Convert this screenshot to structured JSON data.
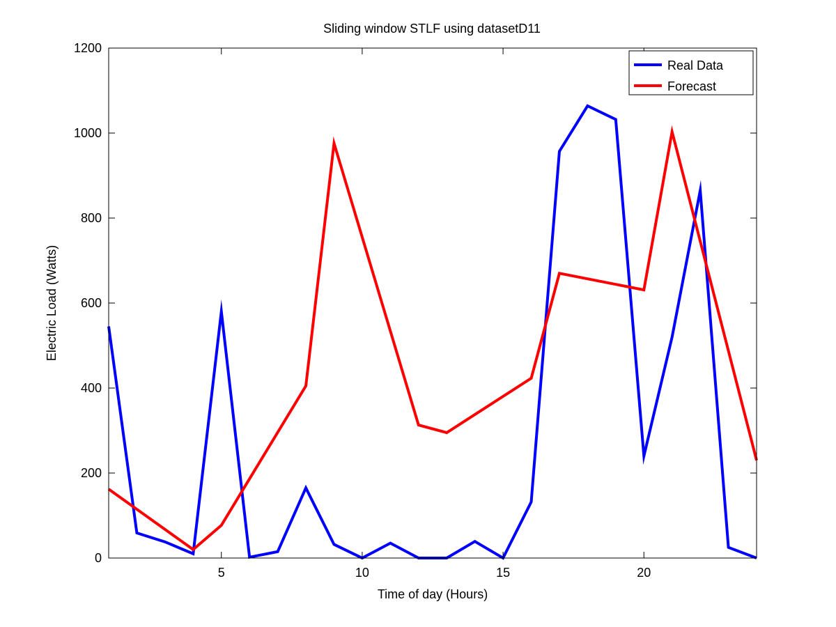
{
  "chart_data": {
    "type": "line",
    "title": "Sliding window STLF using datasetD11",
    "xlabel": "Time of day (Hours)",
    "ylabel": "Electric Load (Watts)",
    "xlim": [
      1,
      24
    ],
    "ylim": [
      0,
      1200
    ],
    "xticks": [
      5,
      10,
      15,
      20
    ],
    "yticks": [
      0,
      200,
      400,
      600,
      800,
      1000,
      1200
    ],
    "grid": false,
    "legend_position": "top-right",
    "x": [
      1,
      2,
      3,
      4,
      5,
      6,
      7,
      8,
      9,
      10,
      11,
      12,
      13,
      14,
      15,
      16,
      17,
      18,
      19,
      20,
      21,
      22,
      23,
      24
    ],
    "series": [
      {
        "name": "Real Data",
        "color": "#0000ff",
        "values": [
          545,
          59,
          38,
          10,
          580,
          2,
          15,
          165,
          32,
          0,
          35,
          0,
          0,
          39,
          0,
          132,
          957,
          1064,
          1032,
          240,
          520,
          865,
          25,
          0
        ]
      },
      {
        "name": "Forecast",
        "color": "#ff0000",
        "x": [
          1,
          4,
          5,
          8,
          9,
          12,
          13,
          16,
          17,
          20,
          21,
          24
        ],
        "values": [
          162,
          20,
          77,
          405,
          976,
          313,
          295,
          423,
          670,
          631,
          1003,
          230
        ]
      }
    ]
  }
}
